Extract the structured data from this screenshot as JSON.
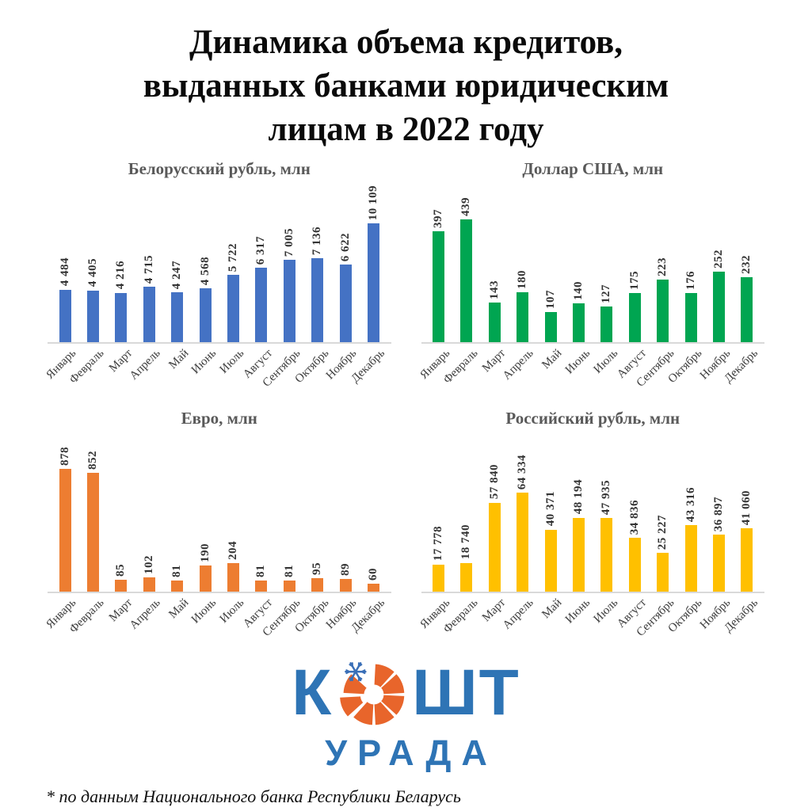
{
  "page": {
    "title_lines": [
      "Динамика объема кредитов,",
      "выданных банками юридическим",
      "лицам в 2022 году"
    ],
    "footnote": "* по данным Национального банка Республики Беларусь"
  },
  "logo": {
    "text_left": "К",
    "text_right": "ШТ",
    "text_bottom": "УРАДА",
    "brand_blue": "#2e74b5",
    "brand_orange": "#e8652b",
    "snowflake_blue": "#3a6fb7"
  },
  "months": [
    "Январь",
    "Февраль",
    "Март",
    "Апрель",
    "Май",
    "Июнь",
    "Июль",
    "Август",
    "Сентябрь",
    "Октябрь",
    "Ноябрь",
    "Декабрь"
  ],
  "chart_data": [
    {
      "type": "bar",
      "title": "Белорусский рубль, млн",
      "categories": [
        "Январь",
        "Февраль",
        "Март",
        "Апрель",
        "Май",
        "Июнь",
        "Июль",
        "Август",
        "Сентябрь",
        "Октябрь",
        "Ноябрь",
        "Декабрь"
      ],
      "values": [
        4484,
        4405,
        4216,
        4715,
        4247,
        4568,
        5722,
        6317,
        7005,
        7136,
        6622,
        10109
      ],
      "labels": [
        "4 484",
        "4 405",
        "4 216",
        "4 715",
        "4 247",
        "4 568",
        "5 722",
        "6 317",
        "7 005",
        "7 136",
        "6 622",
        "10 109"
      ],
      "color": "#4472c4",
      "xlabel": "",
      "ylabel": "",
      "ylim": [
        0,
        10109
      ],
      "grid": false,
      "legend": "none",
      "value_labels": "rotated-90-above-bars",
      "category_labels": "rotated-45"
    },
    {
      "type": "bar",
      "title": "Доллар США, млн",
      "categories": [
        "Январь",
        "Февраль",
        "Март",
        "Апрель",
        "Май",
        "Июнь",
        "Июль",
        "Август",
        "Сентябрь",
        "Октябрь",
        "Ноябрь",
        "Декабрь"
      ],
      "values": [
        397,
        439,
        143,
        180,
        107,
        140,
        127,
        175,
        223,
        176,
        252,
        232
      ],
      "labels": [
        "397",
        "439",
        "143",
        "180",
        "107",
        "140",
        "127",
        "175",
        "223",
        "176",
        "252",
        "232"
      ],
      "color": "#00a551",
      "xlabel": "",
      "ylabel": "",
      "ylim": [
        0,
        439
      ],
      "grid": false,
      "legend": "none",
      "value_labels": "rotated-90-above-bars",
      "category_labels": "rotated-45"
    },
    {
      "type": "bar",
      "title": "Евро, млн",
      "categories": [
        "Январь",
        "Февраль",
        "Март",
        "Апрель",
        "Май",
        "Июнь",
        "Июль",
        "Август",
        "Сентябрь",
        "Октябрь",
        "Ноябрь",
        "Декабрь"
      ],
      "values": [
        878,
        852,
        85,
        102,
        81,
        190,
        204,
        81,
        81,
        95,
        89,
        60
      ],
      "labels": [
        "878",
        "852",
        "85",
        "102",
        "81",
        "190",
        "204",
        "81",
        "81",
        "95",
        "89",
        "60"
      ],
      "color": "#ed7d31",
      "xlabel": "",
      "ylabel": "",
      "ylim": [
        0,
        878
      ],
      "grid": false,
      "legend": "none",
      "value_labels": "rotated-90-above-bars",
      "category_labels": "rotated-45"
    },
    {
      "type": "bar",
      "title": "Российский рубль, млн",
      "categories": [
        "Январь",
        "Февраль",
        "Март",
        "Апрель",
        "Май",
        "Июнь",
        "Июль",
        "Август",
        "Сентябрь",
        "Октябрь",
        "Ноябрь",
        "Декабрь"
      ],
      "values": [
        17778,
        18740,
        57840,
        64334,
        40371,
        48194,
        47935,
        34836,
        25227,
        43316,
        36897,
        41060
      ],
      "labels": [
        "17 778",
        "18 740",
        "57 840",
        "64 334",
        "40 371",
        "48 194",
        "47 935",
        "34 836",
        "25 227",
        "43 316",
        "36 897",
        "41 060"
      ],
      "color": "#ffc000",
      "xlabel": "",
      "ylabel": "",
      "ylim": [
        0,
        64334
      ],
      "grid": false,
      "legend": "none",
      "value_labels": "rotated-90-above-bars",
      "category_labels": "rotated-45"
    }
  ]
}
